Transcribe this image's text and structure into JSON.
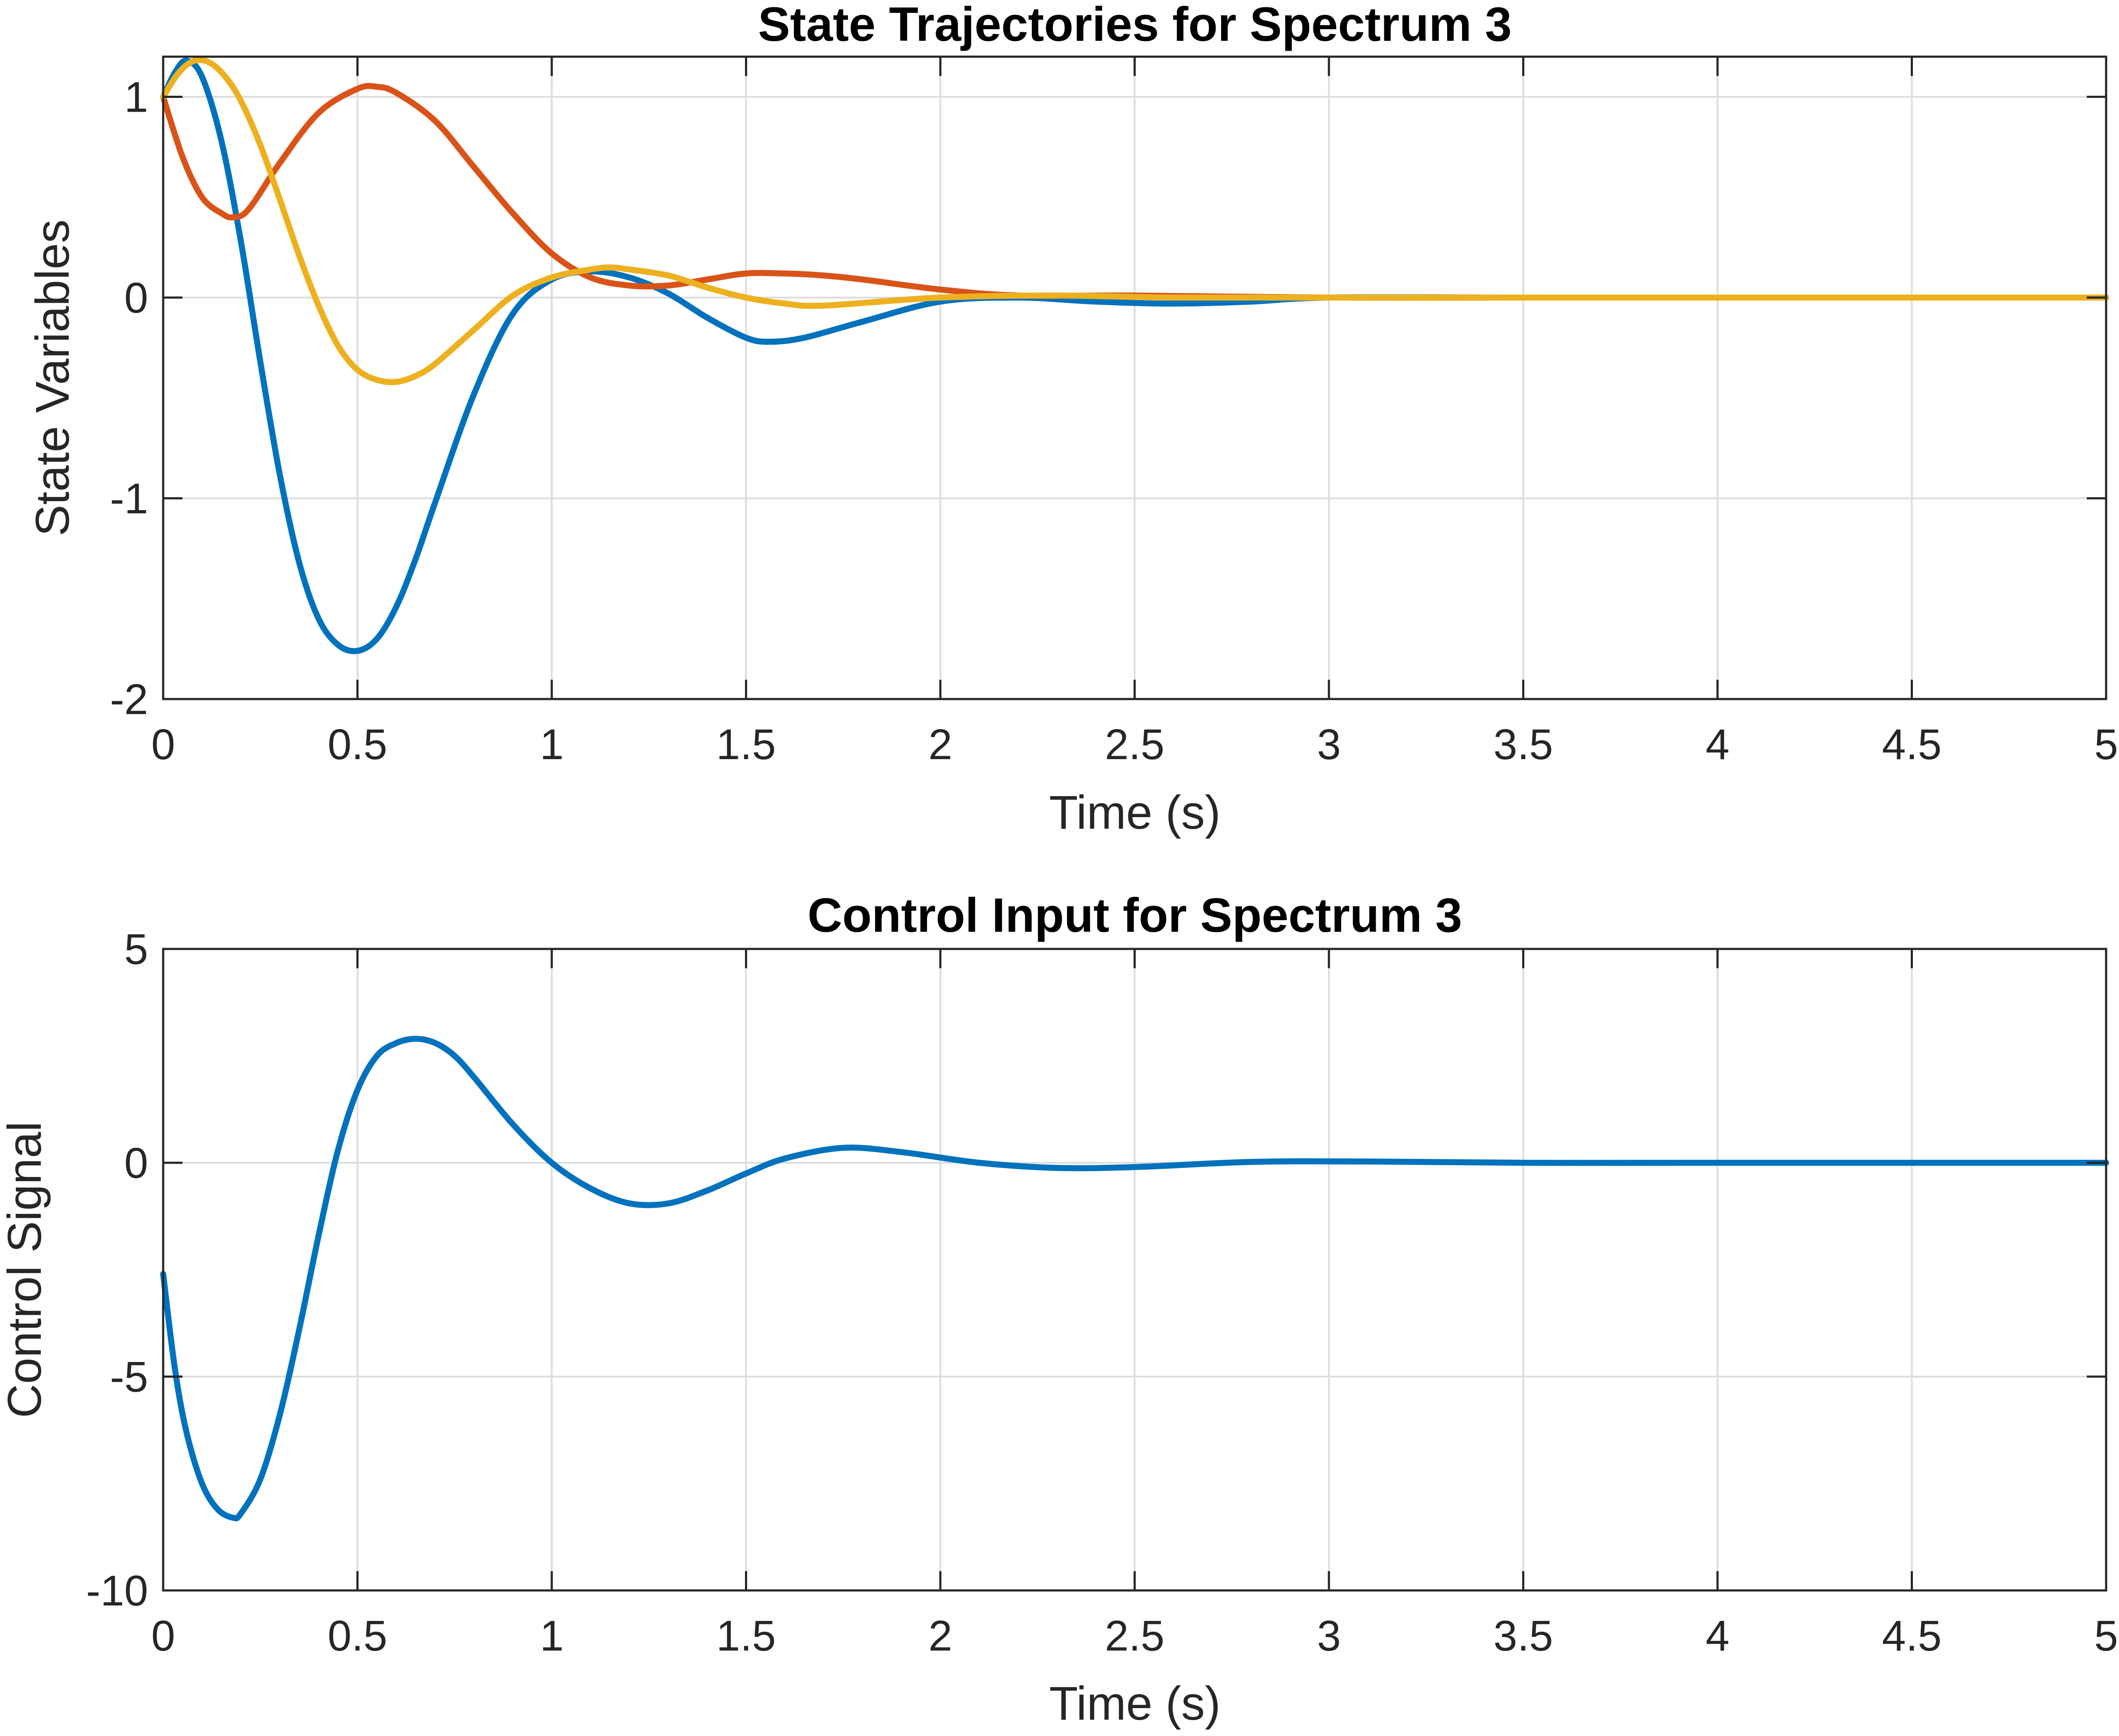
{
  "chart_data": [
    {
      "type": "line",
      "title": "State Trajectories for Spectrum 3",
      "xlabel": "Time (s)",
      "ylabel": "State Variables",
      "xlim": [
        0,
        5
      ],
      "ylim": [
        -2,
        1.2
      ],
      "xticks": [
        0,
        0.5,
        1,
        1.5,
        2,
        2.5,
        3,
        3.5,
        4,
        4.5,
        5
      ],
      "xtick_labels": [
        "0",
        "0.5",
        "1",
        "1.5",
        "2",
        "2.5",
        "3",
        "3.5",
        "4",
        "4.5",
        "5"
      ],
      "yticks": [
        -2,
        -1,
        0,
        1
      ],
      "ytick_labels": [
        "-2",
        "-1",
        "0",
        "1"
      ],
      "grid": true,
      "legend": "none",
      "series": [
        {
          "color": "#0072BD",
          "x": [
            0,
            0.03,
            0.06,
            0.1,
            0.15,
            0.2,
            0.25,
            0.3,
            0.35,
            0.4,
            0.45,
            0.5,
            0.55,
            0.6,
            0.65,
            0.7,
            0.8,
            0.9,
            1.0,
            1.1,
            1.2,
            1.3,
            1.4,
            1.5,
            1.56,
            1.65,
            1.8,
            2.0,
            2.2,
            2.4,
            2.6,
            2.8,
            3.0,
            3.5,
            4.0,
            4.5,
            5.0
          ],
          "values": [
            1.0,
            1.12,
            1.18,
            1.1,
            0.78,
            0.28,
            -0.32,
            -0.88,
            -1.32,
            -1.6,
            -1.73,
            -1.76,
            -1.7,
            -1.54,
            -1.3,
            -1.02,
            -0.48,
            -0.08,
            0.09,
            0.13,
            0.1,
            0.02,
            -0.1,
            -0.2,
            -0.22,
            -0.2,
            -0.12,
            -0.02,
            0.0,
            -0.02,
            -0.03,
            -0.02,
            0.0,
            0.0,
            0.0,
            0.0,
            0.0
          ]
        },
        {
          "color": "#D95319",
          "x": [
            0,
            0.05,
            0.1,
            0.15,
            0.18,
            0.22,
            0.3,
            0.4,
            0.5,
            0.55,
            0.6,
            0.7,
            0.8,
            0.9,
            1.0,
            1.1,
            1.2,
            1.3,
            1.4,
            1.5,
            1.6,
            1.7,
            1.8,
            2.0,
            2.2,
            2.5,
            3.0,
            3.5,
            4.0,
            5.0
          ],
          "values": [
            1.0,
            0.7,
            0.5,
            0.42,
            0.4,
            0.44,
            0.67,
            0.92,
            1.04,
            1.05,
            1.02,
            0.88,
            0.65,
            0.42,
            0.22,
            0.1,
            0.06,
            0.06,
            0.09,
            0.12,
            0.12,
            0.11,
            0.09,
            0.04,
            0.01,
            0.01,
            0.0,
            0.0,
            0.0,
            0.0
          ]
        },
        {
          "color": "#EDB120",
          "x": [
            0,
            0.04,
            0.08,
            0.12,
            0.16,
            0.2,
            0.25,
            0.3,
            0.35,
            0.4,
            0.45,
            0.5,
            0.55,
            0.6,
            0.65,
            0.7,
            0.8,
            0.9,
            1.0,
            1.1,
            1.15,
            1.2,
            1.3,
            1.4,
            1.5,
            1.6,
            1.7,
            2.0,
            2.3,
            2.6,
            3.0,
            3.5,
            4.0,
            5.0
          ],
          "values": [
            1.0,
            1.12,
            1.18,
            1.17,
            1.1,
            0.98,
            0.76,
            0.49,
            0.21,
            -0.04,
            -0.24,
            -0.36,
            -0.41,
            -0.42,
            -0.39,
            -0.33,
            -0.16,
            0.01,
            0.1,
            0.14,
            0.15,
            0.14,
            0.11,
            0.05,
            0.0,
            -0.03,
            -0.04,
            0.0,
            0.01,
            0.0,
            0.0,
            0.0,
            0.0,
            0.0
          ]
        }
      ]
    },
    {
      "type": "line",
      "title": "Control Input for Spectrum 3",
      "xlabel": "Time (s)",
      "ylabel": "Control Signal",
      "xlim": [
        0,
        5
      ],
      "ylim": [
        -10,
        5
      ],
      "xticks": [
        0,
        0.5,
        1,
        1.5,
        2,
        2.5,
        3,
        3.5,
        4,
        4.5,
        5
      ],
      "xtick_labels": [
        "0",
        "0.5",
        "1",
        "1.5",
        "2",
        "2.5",
        "3",
        "3.5",
        "4",
        "4.5",
        "5"
      ],
      "yticks": [
        -10,
        -5,
        0,
        5
      ],
      "ytick_labels": [
        "-10",
        "-5",
        "0",
        "5"
      ],
      "grid": true,
      "legend": "none",
      "series": [
        {
          "color": "#0072BD",
          "x": [
            0,
            0.03,
            0.06,
            0.1,
            0.14,
            0.18,
            0.2,
            0.25,
            0.3,
            0.35,
            0.4,
            0.45,
            0.5,
            0.55,
            0.6,
            0.65,
            0.7,
            0.75,
            0.8,
            0.9,
            1.0,
            1.1,
            1.2,
            1.3,
            1.4,
            1.5,
            1.6,
            1.75,
            1.9,
            2.1,
            2.3,
            2.5,
            2.8,
            3.1,
            3.5,
            4.0,
            5.0
          ],
          "values": [
            -2.6,
            -4.8,
            -6.3,
            -7.5,
            -8.1,
            -8.3,
            -8.2,
            -7.4,
            -5.9,
            -3.9,
            -1.7,
            0.3,
            1.7,
            2.5,
            2.8,
            2.9,
            2.8,
            2.5,
            2.0,
            0.9,
            0.0,
            -0.6,
            -0.95,
            -0.95,
            -0.65,
            -0.25,
            0.1,
            0.35,
            0.25,
            0.0,
            -0.12,
            -0.1,
            0.02,
            0.03,
            0.0,
            0.0,
            0.0
          ]
        }
      ]
    }
  ]
}
